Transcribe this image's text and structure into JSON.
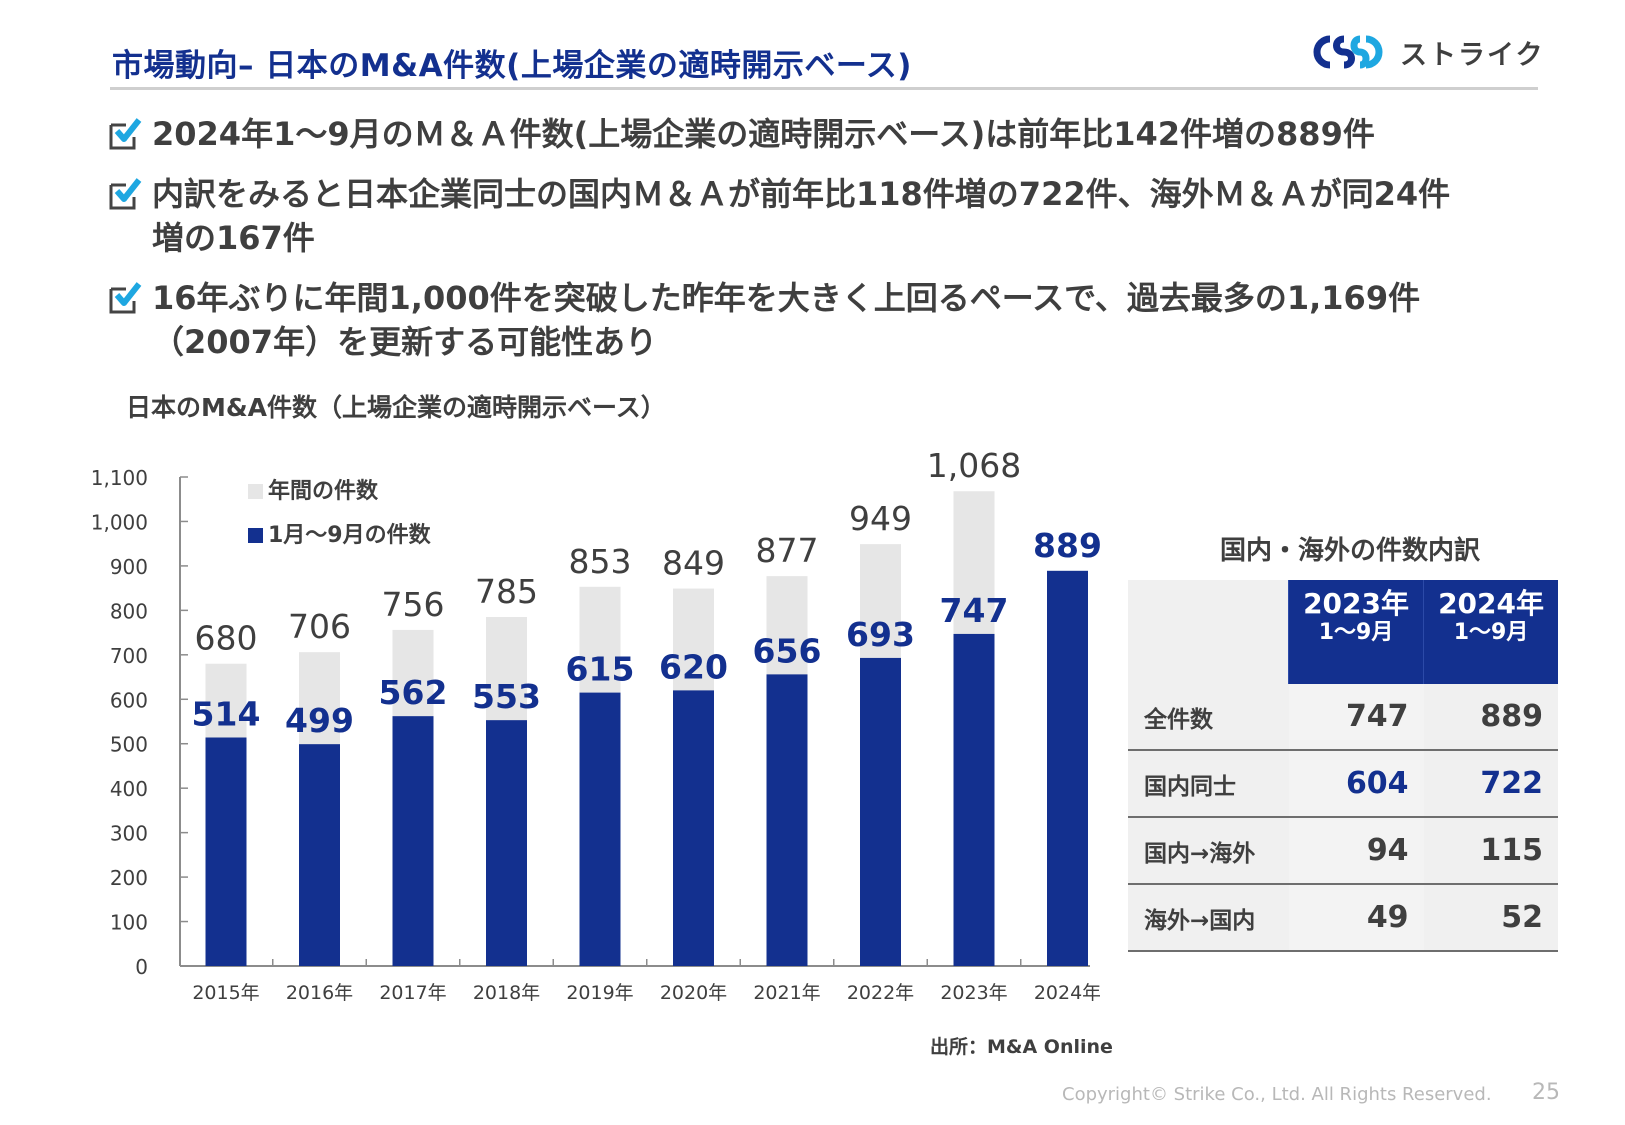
{
  "header": {
    "title": "市場動向– 日本のM&A件数(上場企業の適時開示ベース)",
    "logo_text": "ストライク",
    "logo_icon": "strike-rings-logo"
  },
  "bullets": [
    {
      "icon": "checkbox-checked-icon",
      "text": "2024年1～9月のＭ＆Ａ件数(上場企業の適時開示ベース)は前年比142件増の889件"
    },
    {
      "icon": "checkbox-checked-icon",
      "text": "内訳をみると日本企業同士の国内Ｍ＆Ａが前年比118件増の722件、海外Ｍ＆Ａが同24件増の167件"
    },
    {
      "icon": "checkbox-checked-icon",
      "text": "16年ぶりに年間1,000件を突破した昨年を大きく上回るペースで、過去最多の1,169件（2007年）を更新する可能性あり"
    }
  ],
  "colors": {
    "brand_navy": "#13308f",
    "annual_bar": "#e6e6e6",
    "check_blue": "#1ea7e1",
    "text": "#3f3f3f"
  },
  "chart_data": {
    "type": "bar",
    "title": "日本のM&A件数（上場企業の適時開示ベース）",
    "xlabel": "",
    "ylabel": "",
    "categories": [
      "2015年",
      "2016年",
      "2017年",
      "2018年",
      "2019年",
      "2020年",
      "2021年",
      "2022年",
      "2023年",
      "2024年"
    ],
    "series": [
      {
        "name": "年間の件数",
        "color": "#e6e6e6",
        "values": [
          680,
          706,
          756,
          785,
          853,
          849,
          877,
          949,
          1068,
          null
        ],
        "labels": [
          "680",
          "706",
          "756",
          "785",
          "853",
          "849",
          "877",
          "949",
          "1,068",
          ""
        ]
      },
      {
        "name": "1月～9月の件数",
        "color": "#13308f",
        "values": [
          514,
          499,
          562,
          553,
          615,
          620,
          656,
          693,
          747,
          889
        ],
        "labels": [
          "514",
          "499",
          "562",
          "553",
          "615",
          "620",
          "656",
          "693",
          "747",
          "889"
        ]
      }
    ],
    "ylim": [
      0,
      1100
    ],
    "yticks": [
      0,
      100,
      200,
      300,
      400,
      500,
      600,
      700,
      800,
      900,
      1000,
      1100
    ],
    "ytick_labels": [
      "0",
      "100",
      "200",
      "300",
      "400",
      "500",
      "600",
      "700",
      "800",
      "900",
      "1,000",
      "1,100"
    ],
    "grid": false,
    "legend": "top-left",
    "overlap": true
  },
  "source": "出所：M&A Online",
  "table": {
    "title": "国内・海外の件数内訳",
    "columns": [
      {
        "year": "2023年",
        "period": "1～9月"
      },
      {
        "year": "2024年",
        "period": "1～9月"
      }
    ],
    "rows": [
      {
        "label": "全件数",
        "values": [
          "747",
          "889"
        ],
        "accent": false
      },
      {
        "label": "国内同士",
        "values": [
          "604",
          "722"
        ],
        "accent": true
      },
      {
        "label": "国内→海外",
        "values": [
          "94",
          "115"
        ],
        "accent": false
      },
      {
        "label": "海外→国内",
        "values": [
          "49",
          "52"
        ],
        "accent": false
      }
    ]
  },
  "footer": {
    "copyright": "Copyright© Strike Co., Ltd. All Rights Reserved.",
    "page": "25"
  }
}
